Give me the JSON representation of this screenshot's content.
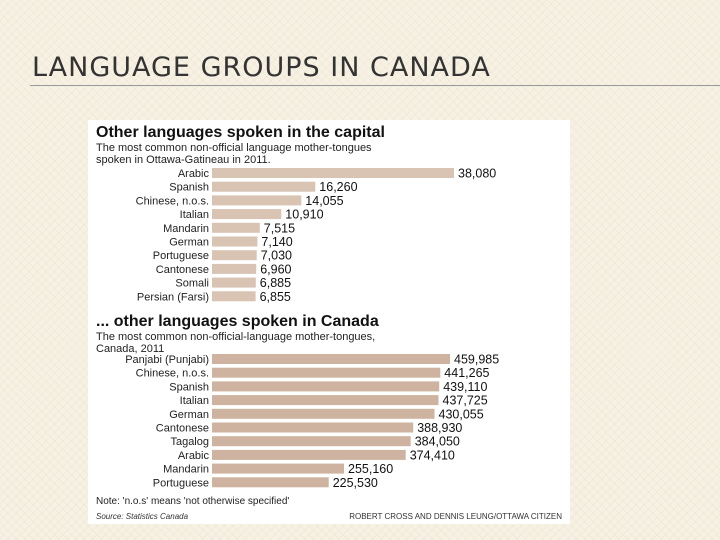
{
  "slide": {
    "title": "LANGUAGE GROUPS IN CANADA"
  },
  "colors": {
    "bar_capital": "#d9c3b3",
    "bar_canada": "#cdb3a0",
    "background": "#f6f1e3"
  },
  "chart_data": [
    {
      "type": "bar",
      "orientation": "horizontal",
      "title": "Other languages spoken in the capital",
      "subtitle": [
        "The most common non-official language mother-tongues",
        "spoken in Ottawa-Gatineau in 2011."
      ],
      "categories": [
        "Arabic",
        "Spanish",
        "Chinese, n.o.s.",
        "Italian",
        "Mandarin",
        "German",
        "Portuguese",
        "Cantonese",
        "Somali",
        "Persian (Farsi)"
      ],
      "values": [
        38080,
        16260,
        14055,
        10910,
        7515,
        7140,
        7030,
        6960,
        6885,
        6855
      ],
      "value_labels": [
        "38,080",
        "16,260",
        "14,055",
        "10,910",
        "7,515",
        "7,140",
        "7,030",
        "6,960",
        "6,885",
        "6,855"
      ],
      "xlim": [
        0,
        38080
      ]
    },
    {
      "type": "bar",
      "orientation": "horizontal",
      "title": "... other languages spoken in Canada",
      "subtitle": [
        "The most common non-official-language mother-tongues,",
        "Canada, 2011"
      ],
      "categories": [
        "Panjabi (Punjabi)",
        "Chinese, n.o.s.",
        "Spanish",
        "Italian",
        "German",
        "Cantonese",
        "Tagalog",
        "Arabic",
        "Mandarin",
        "Portuguese"
      ],
      "values": [
        459985,
        441265,
        439110,
        437725,
        430055,
        388930,
        384050,
        374410,
        255160,
        225530
      ],
      "value_labels": [
        "459,985",
        "441,265",
        "439,110",
        "437,725",
        "430,055",
        "388,930",
        "384,050",
        "374,410",
        "255,160",
        "225,530"
      ],
      "xlim": [
        0,
        459985
      ]
    }
  ],
  "footer": {
    "note": "Note: 'n.o.s' means 'not otherwise specified'",
    "source": "Source: Statistics Canada",
    "credit": "ROBERT CROSS AND DENNIS LEUNG/OTTAWA CITIZEN"
  }
}
